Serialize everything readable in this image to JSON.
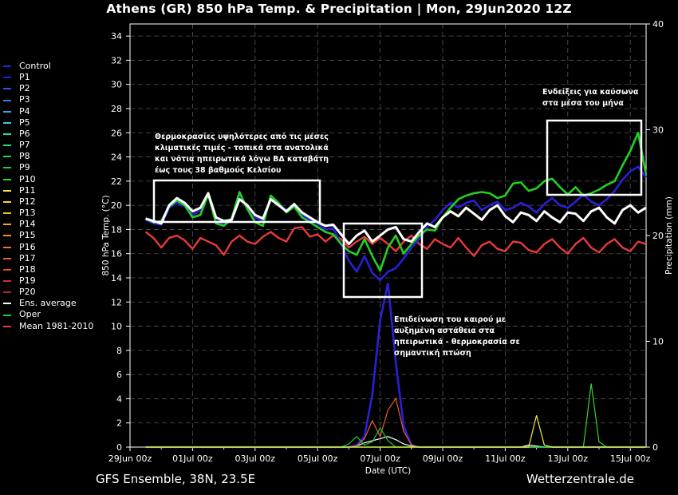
{
  "title": "Athens  (GR)  850 hPa Temp. & Precipitation | Mon, 29Jun2020 12Z",
  "footer": {
    "left": "GFS Ensemble, 38N, 23.5E",
    "right": "Wetterzentrale.de"
  },
  "colors": {
    "background": "#000000",
    "grid": "#555555",
    "box": "#ffffff"
  },
  "legend": [
    {
      "label": "Control",
      "color": "#2b1fd6"
    },
    {
      "label": "P1",
      "color": "#1f1ff0"
    },
    {
      "label": "P2",
      "color": "#2a55e8"
    },
    {
      "label": "P3",
      "color": "#3c7de8"
    },
    {
      "label": "P4",
      "color": "#3aa0ea"
    },
    {
      "label": "P5",
      "color": "#36c8e0"
    },
    {
      "label": "P6",
      "color": "#2ad8b0"
    },
    {
      "label": "P7",
      "color": "#22d878"
    },
    {
      "label": "P8",
      "color": "#22d850"
    },
    {
      "label": "P9",
      "color": "#20c840"
    },
    {
      "label": "P10",
      "color": "#30d830"
    },
    {
      "label": "P11",
      "color": "#f0f040"
    },
    {
      "label": "P12",
      "color": "#f0d830"
    },
    {
      "label": "P13",
      "color": "#f0c028"
    },
    {
      "label": "P14",
      "color": "#f0a828"
    },
    {
      "label": "P15",
      "color": "#f09028"
    },
    {
      "label": "P16",
      "color": "#f07828"
    },
    {
      "label": "P17",
      "color": "#e86028"
    },
    {
      "label": "P18",
      "color": "#d84830"
    },
    {
      "label": "P19",
      "color": "#c83830"
    },
    {
      "label": "P20",
      "color": "#b82828"
    },
    {
      "label": "Ens. average",
      "color": "#ffffff"
    },
    {
      "label": "Oper",
      "color": "#22d022"
    },
    {
      "label": "Mean 1981-2010",
      "color": "#e83a3a"
    }
  ],
  "annotations": [
    {
      "lines": [
        "Θερμοκρασίες υψηλότερες από τις μέσες",
        "κλιματικές τιμές - τοπικά στα ανατολικά",
        "και νότια ηπειρωτικά λόγω ΒΔ καταβάτη",
        "έως τους 38 βαθμούς Κελσίου"
      ]
    },
    {
      "lines": [
        "Επιδείνωση του καιρού με",
        "αυξημένη αστάθεια στα",
        "ηπειρωτικά - θερμοκρασία σε",
        "σημαντική πτώση"
      ]
    },
    {
      "lines": [
        "Ενδείξεις για καύσωνα",
        "στα μέσα του μήνα"
      ]
    }
  ],
  "chart_data": {
    "type": "line",
    "title": "Athens  (GR)  850 hPa Temp. & Precipitation | Mon, 29Jun2020 12Z",
    "xlabel": "Date (UTC)",
    "ylabel": "850 hPa Temp. (°C)",
    "y2label": "Precipitation (mm)",
    "x_ticks": [
      "29Jun 00z",
      "01Jul 00z",
      "03Jul 00z",
      "05Jul 00z",
      "07Jul 00z",
      "09Jul 00z",
      "11Jul 00z",
      "13Jul 00z",
      "15Jul 00z"
    ],
    "x_range_days": [
      0,
      16.5
    ],
    "ylim": [
      0,
      35
    ],
    "y_ticks": [
      0,
      2,
      4,
      6,
      8,
      10,
      12,
      14,
      16,
      18,
      20,
      22,
      24,
      26,
      28,
      30,
      32,
      34
    ],
    "y2lim": [
      0,
      40
    ],
    "y2_ticks": [
      0,
      10,
      20,
      30,
      40
    ],
    "grid": true,
    "legend_position": "left",
    "step_hours": 6,
    "series": [
      {
        "name": "Mean 1981-2010",
        "role": "temp",
        "t0_days": 0.5,
        "values": [
          17.8,
          17.3,
          16.5,
          17.3,
          17.5,
          17.1,
          16.4,
          17.3,
          17.0,
          16.7,
          15.9,
          17.0,
          17.5,
          17.0,
          16.8,
          17.4,
          17.8,
          17.3,
          17.0,
          18.1,
          18.2,
          17.4,
          17.6,
          17.0,
          17.5,
          17.2,
          16.5,
          17.0,
          17.4,
          16.8,
          17.3,
          16.8,
          16.2,
          17.0,
          17.5,
          16.8,
          16.4,
          17.2,
          16.8,
          16.5,
          17.3,
          16.5,
          15.8,
          16.7,
          17.0,
          16.4,
          16.2,
          17.0,
          16.9,
          16.3,
          16.1,
          16.8,
          17.2,
          16.5,
          16.0,
          16.8,
          17.3,
          16.5,
          16.1,
          16.8,
          17.2,
          16.5,
          16.2,
          17.0,
          16.8
        ]
      },
      {
        "name": "Ens. average",
        "role": "temp",
        "t0_days": 0.5,
        "values": [
          18.9,
          18.7,
          18.5,
          20.0,
          20.6,
          20.2,
          19.5,
          19.8,
          21.0,
          19.0,
          18.7,
          18.8,
          20.5,
          20.0,
          19.2,
          18.9,
          20.5,
          20.0,
          19.5,
          20.1,
          19.4,
          19.0,
          18.6,
          18.3,
          18.4,
          17.6,
          16.8,
          17.5,
          17.9,
          17.0,
          17.5,
          18.0,
          18.2,
          17.2,
          17.0,
          17.8,
          18.5,
          18.2,
          19.0,
          19.5,
          19.1,
          19.8,
          19.3,
          18.8,
          19.6,
          20.0,
          19.1,
          18.6,
          19.4,
          19.2,
          18.7,
          19.5,
          19.0,
          18.6,
          19.4,
          19.3,
          18.7,
          19.5,
          19.8,
          19.0,
          18.5,
          19.6,
          20.0,
          19.4,
          19.8
        ]
      },
      {
        "name": "Oper",
        "role": "temp",
        "t0_days": 0.5,
        "values": [
          18.9,
          18.6,
          18.7,
          19.9,
          20.4,
          20.0,
          19.0,
          19.2,
          20.9,
          18.5,
          18.3,
          18.9,
          21.1,
          19.7,
          18.6,
          18.3,
          20.8,
          20.2,
          19.4,
          19.9,
          19.0,
          18.6,
          18.2,
          17.8,
          17.6,
          16.8,
          16.2,
          15.9,
          17.2,
          15.8,
          14.6,
          16.5,
          17.5,
          16.0,
          16.8,
          17.5,
          18.0,
          17.9,
          19.0,
          19.8,
          20.5,
          20.8,
          21.0,
          21.1,
          21.0,
          20.6,
          20.8,
          21.8,
          21.9,
          21.2,
          21.4,
          22.0,
          22.2,
          21.5,
          20.9,
          21.5,
          20.8,
          21.0,
          21.3,
          21.7,
          22.0,
          23.3,
          24.5,
          26.0,
          22.6
        ]
      },
      {
        "name": "Control",
        "role": "temp",
        "t0_days": 0.5,
        "values": [
          18.8,
          18.5,
          18.4,
          19.8,
          20.2,
          19.9,
          19.2,
          19.6,
          20.8,
          18.8,
          18.4,
          18.7,
          20.8,
          19.8,
          19.0,
          18.7,
          20.6,
          20.1,
          19.6,
          20.0,
          19.2,
          18.8,
          18.5,
          18.0,
          18.1,
          16.8,
          15.4,
          14.5,
          15.8,
          14.4,
          13.8,
          14.5,
          14.8,
          15.6,
          16.5,
          17.2,
          18.2,
          18.8,
          19.6,
          20.2,
          19.8,
          20.2,
          20.4,
          19.6,
          20.0,
          20.3,
          19.6,
          19.8,
          20.2,
          19.9,
          19.4,
          20.1,
          20.6,
          20.0,
          19.8,
          20.3,
          20.9,
          20.3,
          20.0,
          20.5,
          21.2,
          22.1,
          22.8,
          23.2,
          22.3
        ]
      },
      {
        "name": "Control",
        "role": "precip",
        "t0_days": 0.5,
        "values": [
          0,
          0,
          0,
          0,
          0,
          0,
          0,
          0,
          0,
          0,
          0,
          0,
          0,
          0,
          0,
          0,
          0,
          0,
          0,
          0,
          0,
          0,
          0,
          0,
          0,
          0,
          0,
          0.2,
          1.0,
          5.0,
          12.0,
          15.5,
          8.0,
          2.0,
          0.2,
          0,
          0,
          0,
          0,
          0,
          0,
          0,
          0,
          0,
          0,
          0,
          0,
          0,
          0,
          0,
          0,
          0,
          0,
          0,
          0,
          0,
          0,
          0,
          0,
          0,
          0,
          0,
          0,
          0,
          0
        ]
      },
      {
        "name": "Ens. average",
        "role": "precip",
        "t0_days": 0.5,
        "values": [
          0,
          0,
          0,
          0,
          0,
          0,
          0,
          0,
          0,
          0,
          0,
          0,
          0,
          0,
          0,
          0,
          0,
          0,
          0,
          0,
          0,
          0,
          0,
          0,
          0,
          0,
          0,
          0.1,
          0.4,
          0.6,
          0.8,
          1.0,
          0.7,
          0.3,
          0.1,
          0,
          0,
          0,
          0,
          0,
          0,
          0,
          0,
          0,
          0,
          0,
          0,
          0,
          0,
          0.2,
          0.1,
          0,
          0,
          0,
          0,
          0,
          0,
          0,
          0,
          0,
          0,
          0,
          0,
          0,
          0
        ]
      },
      {
        "name": "P7",
        "role": "precip",
        "t0_days": 0.5,
        "values": [
          0,
          0,
          0,
          0,
          0,
          0,
          0,
          0,
          0,
          0,
          0,
          0,
          0,
          0,
          0,
          0,
          0,
          0,
          0,
          0,
          0,
          0,
          0,
          0,
          0,
          0,
          0,
          0,
          0,
          0,
          0,
          0,
          0,
          0,
          0,
          0,
          0,
          0,
          0,
          0,
          0,
          0,
          0,
          0,
          0,
          0,
          0,
          0,
          0,
          0,
          0,
          0,
          0,
          0,
          0,
          0,
          0,
          0,
          0,
          0,
          0,
          0,
          0,
          0,
          0
        ]
      },
      {
        "name": "P17",
        "role": "precip",
        "t0_days": 0.5,
        "values": [
          0,
          0,
          0,
          0,
          0,
          0,
          0,
          0,
          0,
          0,
          0,
          0,
          0,
          0,
          0,
          0,
          0,
          0,
          0,
          0,
          0,
          0,
          0,
          0,
          0,
          0,
          0,
          0.1,
          0.8,
          2.5,
          1.0,
          3.5,
          4.6,
          1.5,
          0.2,
          0,
          0,
          0,
          0,
          0,
          0,
          0,
          0,
          0,
          0,
          0,
          0,
          0,
          0,
          0,
          0,
          0,
          0,
          0,
          0,
          0,
          0,
          0,
          0,
          0,
          0,
          0,
          0,
          0,
          0
        ]
      },
      {
        "name": "P9",
        "role": "precip",
        "t0_days": 0.5,
        "values": [
          0,
          0,
          0,
          0,
          0,
          0,
          0,
          0,
          0,
          0,
          0,
          0,
          0,
          0,
          0,
          0,
          0,
          0,
          0,
          0,
          0,
          0,
          0,
          0,
          0,
          0,
          0.3,
          1.0,
          0.2,
          0.5,
          1.8,
          0.6,
          0,
          0,
          0,
          0,
          0,
          0,
          0,
          0,
          0,
          0,
          0,
          0,
          0,
          0,
          0,
          0,
          0,
          0,
          0,
          0,
          0,
          0,
          0,
          0,
          0,
          0,
          0,
          0,
          0,
          0,
          0,
          0,
          0
        ]
      },
      {
        "name": "P10",
        "role": "precip",
        "t0_days": 0.5,
        "values": [
          0,
          0,
          0,
          0,
          0,
          0,
          0,
          0,
          0,
          0,
          0,
          0,
          0,
          0,
          0,
          0,
          0,
          0,
          0,
          0,
          0,
          0,
          0,
          0,
          0,
          0,
          0,
          0,
          0,
          0,
          0,
          0,
          0,
          0,
          0,
          0,
          0,
          0,
          0,
          0,
          0,
          0,
          0,
          0,
          0,
          0,
          0,
          0,
          0,
          0,
          0,
          0,
          0,
          0,
          0,
          0,
          0,
          6.0,
          0.5,
          0,
          0,
          0,
          0,
          0,
          0
        ]
      },
      {
        "name": "P11",
        "role": "precip",
        "t0_days": 0.5,
        "values": [
          0,
          0,
          0,
          0,
          0,
          0,
          0,
          0,
          0,
          0,
          0,
          0,
          0,
          0,
          0,
          0,
          0,
          0,
          0,
          0,
          0,
          0,
          0,
          0,
          0,
          0,
          0,
          0,
          0,
          0,
          0,
          0,
          0,
          0,
          0,
          0,
          0,
          0,
          0,
          0,
          0,
          0,
          0,
          0,
          0,
          0,
          0,
          0,
          0,
          0,
          3.0,
          0.2,
          0,
          0,
          0,
          0,
          0,
          0,
          0,
          0,
          0,
          0,
          0,
          0,
          0
        ]
      }
    ]
  }
}
